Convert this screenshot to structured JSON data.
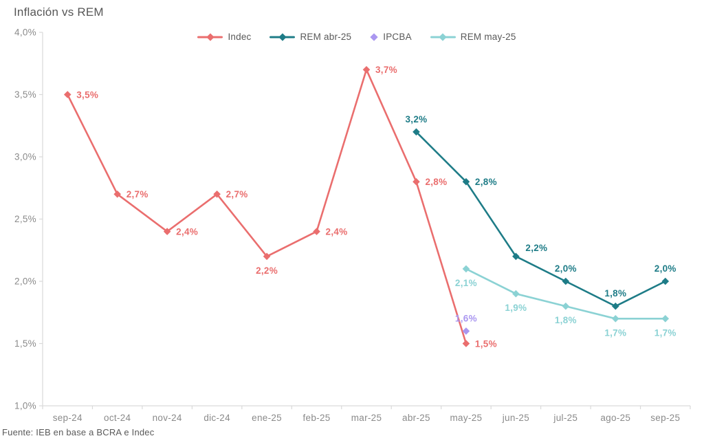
{
  "chart_data": {
    "type": "line",
    "title": "Inflación vs REM",
    "source_note": "Fuente: IEB en base a BCRA e Indec",
    "legend_position": "top",
    "grid": false,
    "background_color": "#ffffff",
    "axis_color": "#d9d9d9",
    "tick_label_color": "#8a8a8a",
    "text_color": "#595959",
    "categories": [
      "sep-24",
      "oct-24",
      "nov-24",
      "dic-24",
      "ene-25",
      "feb-25",
      "mar-25",
      "abr-25",
      "may-25",
      "jun-25",
      "jul-25",
      "ago-25",
      "sep-25"
    ],
    "y_axis": {
      "min": 1.0,
      "max": 4.0,
      "step": 0.5,
      "tick_labels": [
        "1,0%",
        "1,5%",
        "2,0%",
        "2,5%",
        "3,0%",
        "3,5%",
        "4,0%"
      ]
    },
    "series": [
      {
        "name": "Indec",
        "color": "#ea6e6e",
        "marker": "diamond",
        "line": true,
        "points": [
          {
            "x": "sep-24",
            "y": 3.5,
            "label": "3,5%",
            "label_pos": "right"
          },
          {
            "x": "oct-24",
            "y": 2.7,
            "label": "2,7%",
            "label_pos": "right"
          },
          {
            "x": "nov-24",
            "y": 2.4,
            "label": "2,4%",
            "label_pos": "right"
          },
          {
            "x": "dic-24",
            "y": 2.7,
            "label": "2,7%",
            "label_pos": "right"
          },
          {
            "x": "ene-25",
            "y": 2.2,
            "label": "2,2%",
            "label_pos": "below"
          },
          {
            "x": "feb-25",
            "y": 2.4,
            "label": "2,4%",
            "label_pos": "right"
          },
          {
            "x": "mar-25",
            "y": 3.7,
            "label": "3,7%",
            "label_pos": "right"
          },
          {
            "x": "abr-25",
            "y": 2.8,
            "label": "2,8%",
            "label_pos": "right"
          },
          {
            "x": "may-25",
            "y": 1.5,
            "label": "1,5%",
            "label_pos": "right"
          }
        ]
      },
      {
        "name": "REM abr-25",
        "color": "#1e7c87",
        "marker": "diamond",
        "line": true,
        "points": [
          {
            "x": "abr-25",
            "y": 3.2,
            "label": "3,2%",
            "label_pos": "above"
          },
          {
            "x": "may-25",
            "y": 2.8,
            "label": "2,8%",
            "label_pos": "right"
          },
          {
            "x": "jun-25",
            "y": 2.2,
            "label": "2,2%",
            "label_pos": "above-right"
          },
          {
            "x": "jul-25",
            "y": 2.0,
            "label": "2,0%",
            "label_pos": "above"
          },
          {
            "x": "ago-25",
            "y": 1.8,
            "label": "1,8%",
            "label_pos": "above"
          },
          {
            "x": "sep-25",
            "y": 2.0,
            "label": "2,0%",
            "label_pos": "above"
          }
        ]
      },
      {
        "name": "IPCBA",
        "color": "#aa97f0",
        "marker": "diamond",
        "line": false,
        "points": [
          {
            "x": "may-25",
            "y": 1.6,
            "label": "1,6%",
            "label_pos": "above"
          }
        ]
      },
      {
        "name": "REM may-25",
        "color": "#8bd2d4",
        "marker": "diamond",
        "line": true,
        "points": [
          {
            "x": "may-25",
            "y": 2.1,
            "label": "2,1%",
            "label_pos": "below"
          },
          {
            "x": "jun-25",
            "y": 1.9,
            "label": "1,9%",
            "label_pos": "below"
          },
          {
            "x": "jul-25",
            "y": 1.8,
            "label": "1,8%",
            "label_pos": "below"
          },
          {
            "x": "ago-25",
            "y": 1.7,
            "label": "1,7%",
            "label_pos": "below"
          },
          {
            "x": "sep-25",
            "y": 1.7,
            "label": "1,7%",
            "label_pos": "below"
          }
        ]
      }
    ]
  }
}
